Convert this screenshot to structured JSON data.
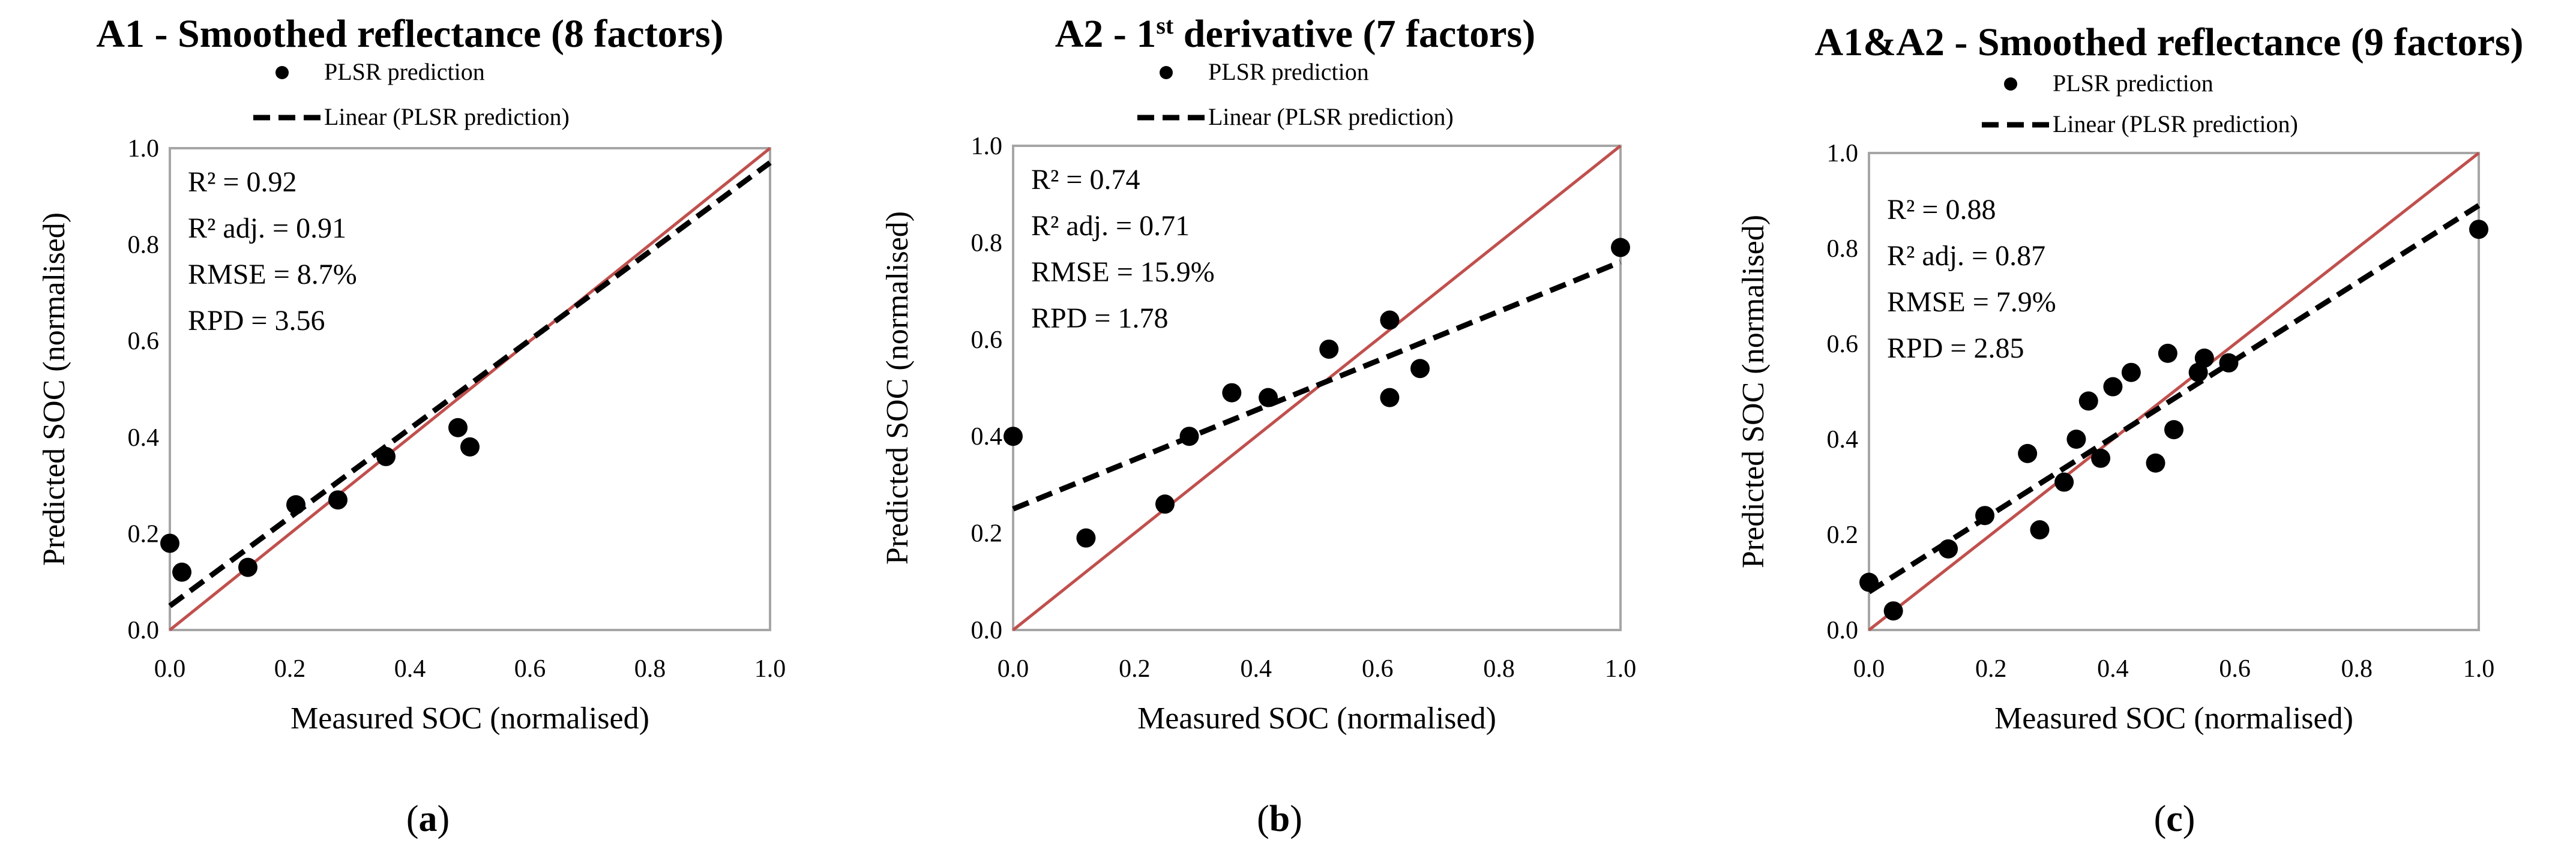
{
  "chart_data": [
    {
      "type": "scatter",
      "title": "A1 - Smoothed reflectance (8 factors)",
      "title_parts": [
        "A1 - Smoothed reflectance (8 factors)"
      ],
      "legend": {
        "points": "PLSR prediction",
        "line": "Linear (PLSR prediction)"
      },
      "xlabel": "Measured SOC (normalised)",
      "ylabel": "Predicted SOC (normalised)",
      "xlim": [
        0,
        1
      ],
      "ylim": [
        0,
        1
      ],
      "xticks": [
        "0.0",
        "0.2",
        "0.4",
        "0.6",
        "0.8",
        "1.0"
      ],
      "yticks": [
        "0.0",
        "0.2",
        "0.4",
        "0.6",
        "0.8",
        "1.0"
      ],
      "stats": [
        "R² = 0.92",
        "R² adj. = 0.91",
        "RMSE = 8.7%",
        "RPD = 3.56"
      ],
      "points": [
        [
          0.0,
          0.18
        ],
        [
          0.02,
          0.12
        ],
        [
          0.13,
          0.13
        ],
        [
          0.21,
          0.26
        ],
        [
          0.28,
          0.27
        ],
        [
          0.36,
          0.36
        ],
        [
          0.48,
          0.42
        ],
        [
          0.5,
          0.38
        ]
      ],
      "trend": [
        [
          0.0,
          0.05
        ],
        [
          1.0,
          0.97
        ]
      ],
      "identity": [
        [
          0.0,
          0.0
        ],
        [
          1.0,
          1.0
        ]
      ],
      "caption_letter": "a"
    },
    {
      "type": "scatter",
      "title": "A2 - 1st derivative (7 factors)",
      "title_parts": [
        "A2 - 1",
        "st",
        " derivative (7 factors)"
      ],
      "legend": {
        "points": "PLSR prediction",
        "line": "Linear (PLSR prediction)"
      },
      "xlabel": "Measured SOC (normalised)",
      "ylabel": "Predicted SOC (normalised)",
      "xlim": [
        0,
        1
      ],
      "ylim": [
        0,
        1
      ],
      "xticks": [
        "0.0",
        "0.2",
        "0.4",
        "0.6",
        "0.8",
        "1.0"
      ],
      "yticks": [
        "0.0",
        "0.2",
        "0.4",
        "0.6",
        "0.8",
        "1.0"
      ],
      "stats": [
        "R² = 0.74",
        "R² adj. = 0.71",
        "RMSE = 15.9%",
        "RPD = 1.78"
      ],
      "points": [
        [
          0.0,
          0.4
        ],
        [
          0.12,
          0.19
        ],
        [
          0.25,
          0.26
        ],
        [
          0.29,
          0.4
        ],
        [
          0.36,
          0.49
        ],
        [
          0.42,
          0.48
        ],
        [
          0.52,
          0.58
        ],
        [
          0.62,
          0.64
        ],
        [
          0.62,
          0.48
        ],
        [
          0.67,
          0.54
        ],
        [
          1.0,
          0.79
        ]
      ],
      "trend": [
        [
          0.0,
          0.25
        ],
        [
          1.0,
          0.76
        ]
      ],
      "identity": [
        [
          0.0,
          0.0
        ],
        [
          1.0,
          1.0
        ]
      ],
      "caption_letter": "b"
    },
    {
      "type": "scatter",
      "title": "A1&A2 - Smoothed reflectance (9 factors)",
      "title_parts": [
        "A1&A2 - Smoothed reflectance (9 factors)"
      ],
      "legend": {
        "points": "PLSR prediction",
        "line": "Linear (PLSR prediction)"
      },
      "xlabel": "Measured SOC (normalised)",
      "ylabel": "Predicted SOC (normalised)",
      "xlim": [
        0,
        1
      ],
      "ylim": [
        0,
        1
      ],
      "xticks": [
        "0.0",
        "0.2",
        "0.4",
        "0.6",
        "0.8",
        "1.0"
      ],
      "yticks": [
        "0.0",
        "0.2",
        "0.4",
        "0.6",
        "0.8",
        "1.0"
      ],
      "stats": [
        "R² = 0.88",
        "R² adj. = 0.87",
        "RMSE = 7.9%",
        "RPD = 2.85"
      ],
      "points": [
        [
          0.0,
          0.1
        ],
        [
          0.04,
          0.04
        ],
        [
          0.13,
          0.17
        ],
        [
          0.19,
          0.24
        ],
        [
          0.26,
          0.37
        ],
        [
          0.28,
          0.21
        ],
        [
          0.32,
          0.31
        ],
        [
          0.34,
          0.4
        ],
        [
          0.36,
          0.48
        ],
        [
          0.38,
          0.36
        ],
        [
          0.4,
          0.51
        ],
        [
          0.43,
          0.54
        ],
        [
          0.47,
          0.35
        ],
        [
          0.49,
          0.58
        ],
        [
          0.5,
          0.42
        ],
        [
          0.54,
          0.54
        ],
        [
          0.55,
          0.57
        ],
        [
          0.59,
          0.56
        ],
        [
          1.0,
          0.84
        ]
      ],
      "trend": [
        [
          0.0,
          0.08
        ],
        [
          1.0,
          0.89
        ]
      ],
      "identity": [
        [
          0.0,
          0.0
        ],
        [
          1.0,
          1.0
        ]
      ],
      "caption_letter": "c"
    }
  ],
  "colors": {
    "identity_line": "#c0504d",
    "trend_line": "#000000",
    "points": "#000000",
    "frame": "#a6a6a6"
  },
  "captions": {
    "open": "(",
    "close": ")"
  }
}
